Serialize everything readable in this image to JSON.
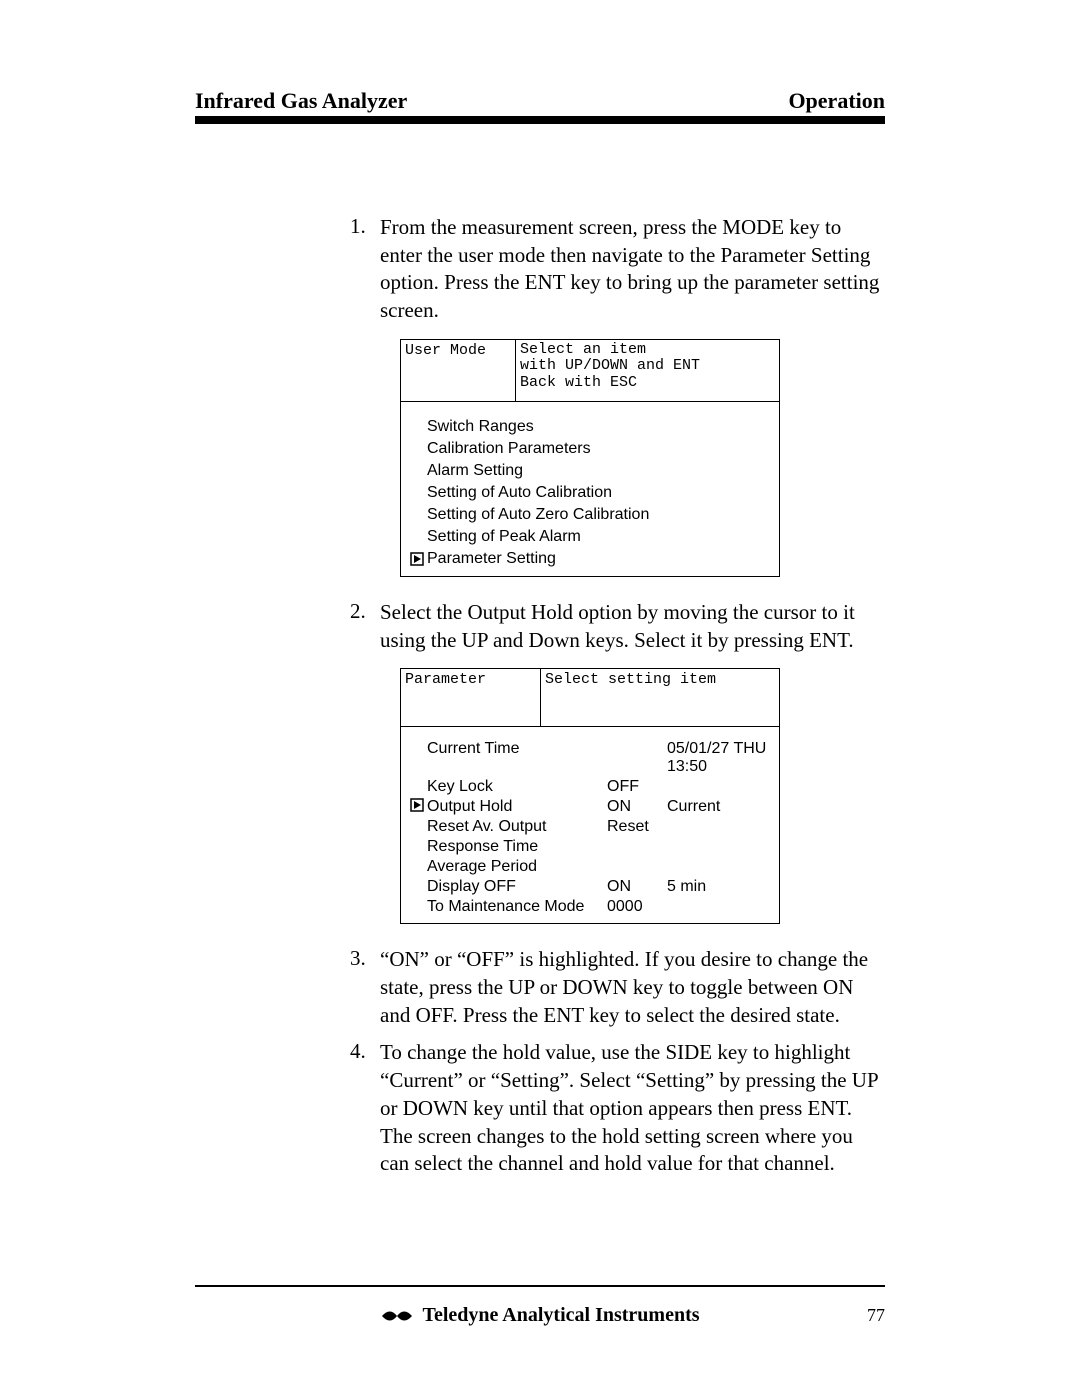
{
  "header": {
    "left": "Infrared Gas Analyzer",
    "right": "Operation"
  },
  "steps": {
    "s1": {
      "num": "1.",
      "text": "From the measurement screen, press the MODE key to enter the user mode then navigate to the Parameter Setting option.  Press the ENT key to bring up the parameter setting screen."
    },
    "s2": {
      "num": "2.",
      "text": "Select the Output Hold option by moving the cursor to it using the UP and Down keys. Select it by pressing ENT."
    },
    "s3": {
      "num": "3.",
      "text": "“ON” or “OFF” is highlighted. If you desire to change the state, press the UP or DOWN key to toggle between ON and OFF. Press the ENT key to select the desired state."
    },
    "s4": {
      "num": "4.",
      "text": "To change the hold value, use the SIDE key to highlight “Current” or “Setting”. Select “Setting” by pressing the UP or DOWN key until that option appears then press ENT. The screen changes to the hold setting screen where you can select the channel and hold value for that channel."
    }
  },
  "screen1": {
    "title": "User Mode",
    "hint": "Select an item\nwith UP/DOWN and ENT\nBack with ESC",
    "items": [
      "Switch Ranges",
      "Calibration Parameters",
      "Alarm Setting",
      "Setting of Auto Calibration",
      "Setting of Auto Zero Calibration",
      "Setting of Peak Alarm",
      "Parameter Setting"
    ],
    "cursor_index": 6
  },
  "screen2": {
    "title": "Parameter",
    "hint": "Select setting item",
    "rows": [
      {
        "label": "Current Time",
        "v1": "",
        "v2": "05/01/27  THU  13:50"
      },
      {
        "label": "Key Lock",
        "v1": "OFF",
        "v2": ""
      },
      {
        "label": "Output Hold",
        "v1": "ON",
        "v2": "Current"
      },
      {
        "label": "Reset Av. Output",
        "v1": "Reset",
        "v2": ""
      },
      {
        "label": "Response Time",
        "v1": "",
        "v2": ""
      },
      {
        "label": "Average Period",
        "v1": "",
        "v2": ""
      },
      {
        "label": "Display OFF",
        "v1": "ON",
        "v2": "5 min"
      },
      {
        "label": "To Maintenance Mode",
        "v1": "0000",
        "v2": ""
      }
    ],
    "cursor_index": 2
  },
  "footer": {
    "brand": "Teledyne Analytical Instruments",
    "page": "77"
  }
}
